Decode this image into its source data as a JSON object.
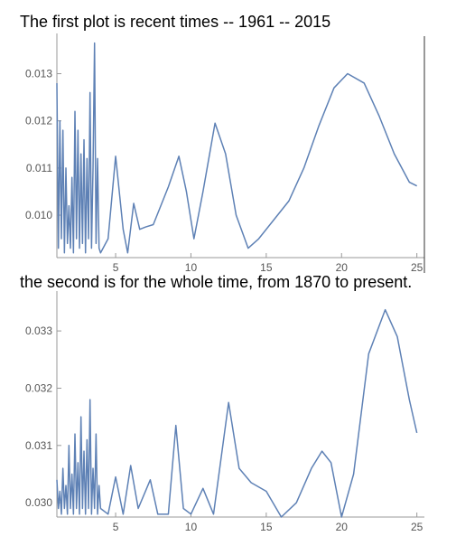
{
  "chart_data": [
    {
      "type": "line",
      "title": "The first plot is recent times -- 1961 -- 2015",
      "x": [
        1.1,
        1.2,
        1.3,
        1.4,
        1.5,
        1.6,
        1.7,
        1.8,
        1.9,
        2.0,
        2.1,
        2.2,
        2.3,
        2.4,
        2.5,
        2.6,
        2.7,
        2.8,
        2.9,
        3.0,
        3.1,
        3.2,
        3.3,
        3.4,
        3.5,
        3.6,
        3.7,
        3.8,
        3.9,
        4.0,
        4.5,
        5.0,
        5.5,
        5.8,
        6.2,
        6.6,
        7.0,
        7.5,
        8.0,
        8.5,
        9.2,
        9.7,
        10.2,
        10.8,
        11.6,
        12.3,
        13.0,
        13.8,
        14.5,
        15.5,
        16.5,
        17.5,
        18.5,
        19.5,
        20.4,
        21.5,
        22.5,
        23.5,
        24.5,
        25.0
      ],
      "series": [
        {
          "color": "#5e81b5",
          "values": [
            0.0128,
            0.0093,
            0.012,
            0.0095,
            0.0118,
            0.0092,
            0.011,
            0.0094,
            0.0102,
            0.0093,
            0.0108,
            0.0092,
            0.0122,
            0.0095,
            0.0118,
            0.0093,
            0.0113,
            0.0094,
            0.0116,
            0.0092,
            0.0112,
            0.0095,
            0.0126,
            0.0093,
            0.011,
            0.01365,
            0.0094,
            0.0112,
            0.0093,
            0.0092,
            0.0095,
            0.01125,
            0.0097,
            0.0092,
            0.01025,
            0.0097,
            0.00975,
            0.0098,
            0.0102,
            0.0106,
            0.01125,
            0.0105,
            0.0095,
            0.0105,
            0.01195,
            0.0113,
            0.01,
            0.0093,
            0.0095,
            0.0099,
            0.0103,
            0.011,
            0.0119,
            0.0127,
            0.013,
            0.0128,
            0.0121,
            0.0113,
            0.0107,
            0.01062
          ]
        }
      ],
      "xlim": [
        1.1,
        25.5
      ],
      "ylim": [
        0.0091,
        0.0137
      ],
      "xticks": [
        5,
        10,
        15,
        20,
        25
      ],
      "yticks": [
        {
          "value": 0.01,
          "label": "0.010"
        },
        0.011,
        0.012,
        0.013
      ]
    },
    {
      "type": "line",
      "title": "the second is for the whole time, from 1870 to present.",
      "x": [
        1.1,
        1.2,
        1.3,
        1.4,
        1.5,
        1.6,
        1.7,
        1.8,
        1.9,
        2.0,
        2.1,
        2.2,
        2.3,
        2.4,
        2.5,
        2.6,
        2.7,
        2.8,
        2.9,
        3.0,
        3.1,
        3.2,
        3.3,
        3.4,
        3.5,
        3.6,
        3.7,
        3.8,
        3.9,
        4.0,
        4.5,
        5.0,
        5.5,
        6.0,
        6.5,
        7.3,
        7.8,
        8.5,
        9.0,
        9.5,
        10.0,
        10.8,
        11.5,
        12.5,
        13.2,
        14.0,
        15.0,
        16.0,
        17.0,
        18.0,
        18.7,
        19.3,
        20.0,
        20.8,
        21.8,
        22.9,
        23.7,
        24.5,
        25.0
      ],
      "series": [
        {
          "color": "#5e81b5",
          "values": [
            0.0304,
            0.0299,
            0.0302,
            0.0298,
            0.0306,
            0.0299,
            0.0303,
            0.0298,
            0.031,
            0.0299,
            0.0305,
            0.0298,
            0.0312,
            0.0299,
            0.0307,
            0.0298,
            0.0315,
            0.0299,
            0.0309,
            0.0298,
            0.0311,
            0.0299,
            0.0318,
            0.0298,
            0.0306,
            0.0299,
            0.0312,
            0.0298,
            0.0303,
            0.0299,
            0.0298,
            0.03045,
            0.0298,
            0.03065,
            0.0299,
            0.0304,
            0.0298,
            0.0298,
            0.03135,
            0.0299,
            0.0298,
            0.03025,
            0.0298,
            0.03175,
            0.0306,
            0.03035,
            0.0302,
            0.02975,
            0.03,
            0.0306,
            0.0309,
            0.0307,
            0.02975,
            0.0305,
            0.0326,
            0.03337,
            0.0329,
            0.0318,
            0.03122
          ]
        }
      ],
      "xlim": [
        1.1,
        25.5
      ],
      "ylim": [
        0.02975,
        0.03357
      ],
      "xticks": [
        5,
        10,
        15,
        20,
        25
      ],
      "yticks": [
        {
          "value": 0.03,
          "label": "0.030"
        },
        0.031,
        0.032,
        0.033
      ]
    }
  ]
}
